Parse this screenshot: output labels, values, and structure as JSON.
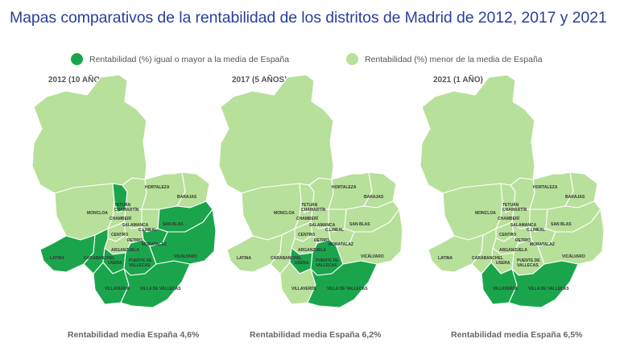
{
  "title": "Mapas comparativos de la rentabilidad de los distritos de Madrid de 2012, 2017 y 2021",
  "colors": {
    "above": "#1aa54c",
    "below": "#b7e09a",
    "title": "#2a3f9a",
    "border": "#ffffff"
  },
  "legend": {
    "above_label": "Rentabilidad (%) igual o mayor a la media de España",
    "below_label": "Rentabilidad (%) menor de la media de España"
  },
  "maps": [
    {
      "year_label": "2012 (10 AÑOS)",
      "caption": "Rentabilidad media España 4,6%",
      "districts": {
        "Hortaleza": "below",
        "Barajas": "below",
        "Moncloa": "below",
        "Tetuán": "above",
        "Chamartín": "below",
        "Chamberí": "below",
        "Salamanca": "below",
        "C.Lineal": "below",
        "San Blas": "above",
        "Centro": "below",
        "Retiro": "below",
        "Moratalaz": "above",
        "Arganzuela": "below",
        "Latina": "above",
        "Carabanchel": "above",
        "Usera": "above",
        "Puente de Vallecas": "above",
        "Vicálvaro": "above",
        "Villaverde": "above",
        "Villa de Vallecas": "above",
        "Fuencarral": "below"
      }
    },
    {
      "year_label": "2017 (5 AÑOS)",
      "caption": "Rentabilidad media España 6,2%",
      "districts": {
        "Hortaleza": "below",
        "Barajas": "below",
        "Moncloa": "below",
        "Tetuán": "below",
        "Chamartín": "below",
        "Chamberí": "below",
        "Salamanca": "below",
        "C.Lineal": "below",
        "San Blas": "below",
        "Centro": "below",
        "Retiro": "below",
        "Moratalaz": "below",
        "Arganzuela": "below",
        "Latina": "below",
        "Carabanchel": "below",
        "Usera": "above",
        "Puente de Vallecas": "above",
        "Vicálvaro": "below",
        "Villaverde": "below",
        "Villa de Vallecas": "above",
        "Fuencarral": "below"
      }
    },
    {
      "year_label": "2021 (1 AÑO)",
      "caption": "Rentabilidad media España 6,5%",
      "districts": {
        "Hortaleza": "below",
        "Barajas": "below",
        "Moncloa": "below",
        "Tetuán": "below",
        "Chamartín": "below",
        "Chamberí": "below",
        "Salamanca": "below",
        "C.Lineal": "below",
        "San Blas": "below",
        "Centro": "below",
        "Retiro": "below",
        "Moratalaz": "below",
        "Arganzuela": "below",
        "Latina": "below",
        "Carabanchel": "below",
        "Usera": "below",
        "Puente de Vallecas": "below",
        "Vicálvaro": "below",
        "Villaverde": "above",
        "Villa de Vallecas": "above",
        "Fuencarral": "below"
      }
    }
  ],
  "district_labels": {
    "Hortaleza": "HORTALEZA",
    "Barajas": "BARAJAS",
    "Moncloa": "MONCLOA",
    "Tetuán": "TETUÁN",
    "Chamartín": "CHAMARTÍN",
    "Chamberí": "CHAMBERÍ",
    "Salamanca": "SALAMANCA",
    "C.Lineal": "C.LINEAL",
    "San Blas": "SAN BLAS",
    "Centro": "CENTRO",
    "Retiro": "RETIRO",
    "Moratalaz": "MORATALAZ",
    "Arganzuela": "ARGANZUELA",
    "Latina": "LATINA",
    "Carabanchel": "CARABANCHEL",
    "Usera": "USERA",
    "Puente de Vallecas": "PUENTE DE VALLECAS",
    "Vicálvaro": "VICÁLVARO",
    "Villaverde": "VILLAVERDE",
    "Villa de Vallecas": "VILLA DE VALLECAS"
  }
}
